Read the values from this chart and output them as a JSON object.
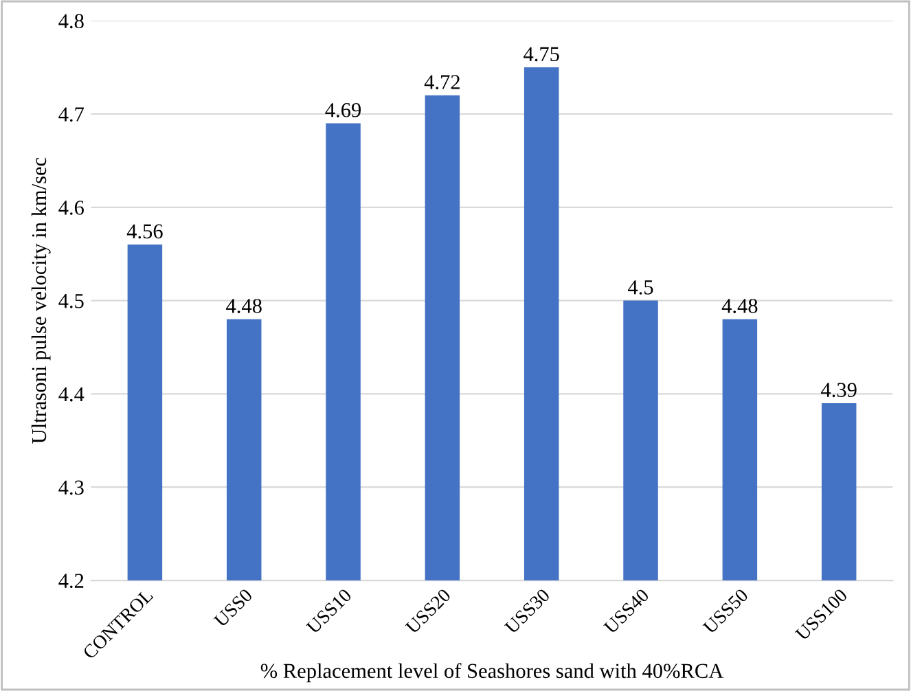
{
  "chart_data": {
    "type": "bar",
    "xlabel": "% Replacement level of Seashores sand with 40%RCA",
    "ylabel": "Ultrasoni pulse velocity in km/sec",
    "categories": [
      "CONTROL",
      "USS0",
      "USS10",
      "USS20",
      "USS30",
      "USS40",
      "USS50",
      "USS100"
    ],
    "values": [
      4.56,
      4.48,
      4.69,
      4.72,
      4.75,
      4.5,
      4.48,
      4.39
    ],
    "color": "#4472c4",
    "ylim": [
      4.2,
      4.8
    ],
    "yticks": [
      4.2,
      4.3,
      4.4,
      4.5,
      4.6,
      4.7,
      4.8
    ],
    "grid": "y",
    "data_labels": true
  }
}
